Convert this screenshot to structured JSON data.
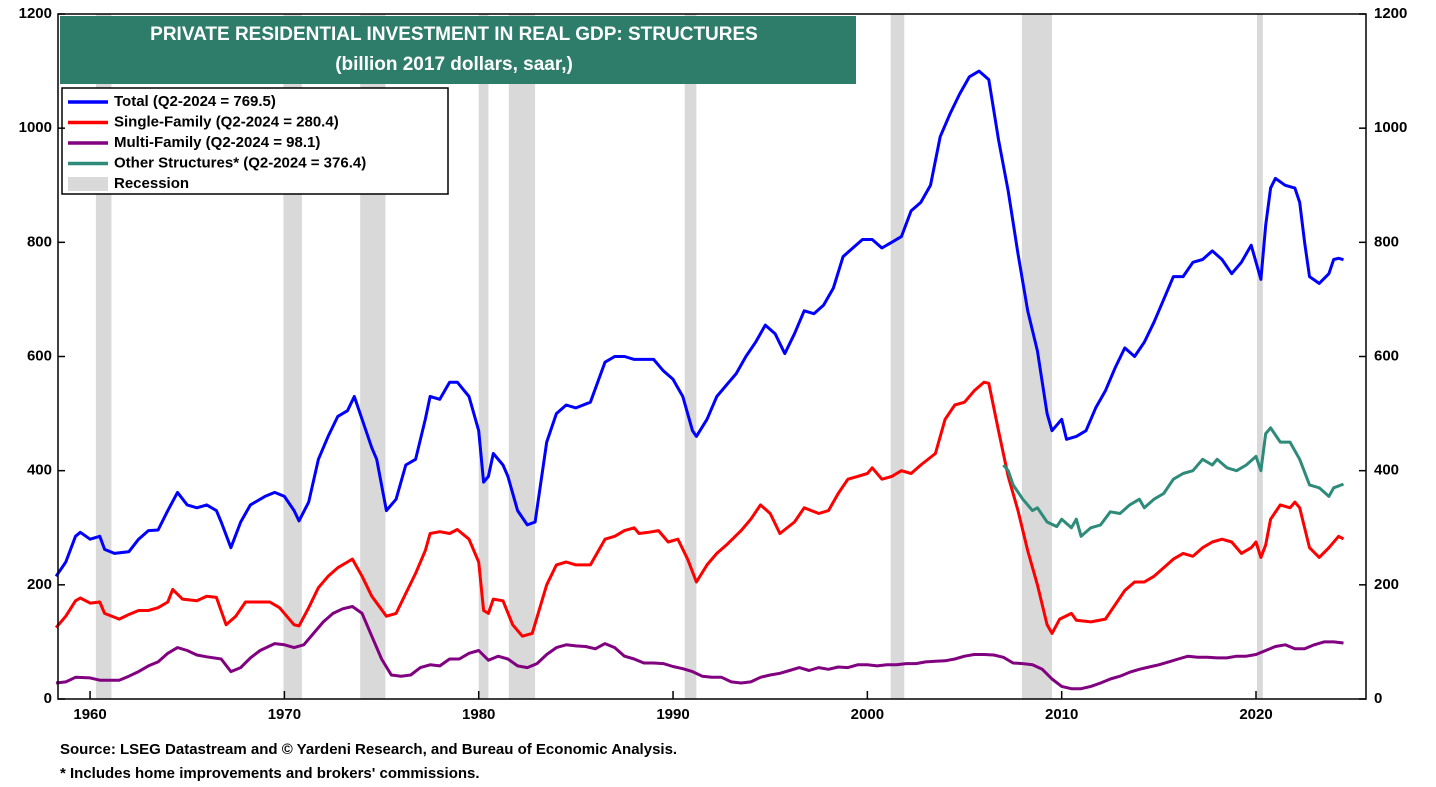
{
  "chart_data": {
    "type": "line",
    "title": "PRIVATE RESIDENTIAL INVESTMENT IN REAL GDP: STRUCTURES",
    "subtitle": "(billion 2017 dollars, saar,)",
    "source": "Source: LSEG Datastream and © Yardeni Research, and Bureau of Economic Analysis.",
    "note": "* Includes home improvements and brokers' commissions.",
    "xlim": [
      1958.35,
      2025.66
    ],
    "xticks": [
      1960,
      1970,
      1980,
      1990,
      2000,
      2010,
      2020
    ],
    "ylim": [
      0,
      1200
    ],
    "yticks": [
      0,
      200,
      400,
      600,
      800,
      1000,
      1200
    ],
    "y2lim": [
      0,
      1200
    ],
    "y2ticks": [
      0,
      200,
      400,
      600,
      800,
      1000,
      1200
    ],
    "legend": "top-left",
    "recession": {
      "name": "Recession",
      "color": "#d9d9d9",
      "periods": [
        [
          1960.3,
          1961.1
        ],
        [
          1969.95,
          1970.9
        ],
        [
          1973.9,
          1975.2
        ],
        [
          1980.0,
          1980.5
        ],
        [
          1981.55,
          1982.9
        ],
        [
          1990.6,
          1991.2
        ],
        [
          2001.2,
          2001.9
        ],
        [
          2007.95,
          2009.5
        ],
        [
          2020.05,
          2020.35
        ]
      ]
    },
    "series": [
      {
        "name": "Total (Q2-2024 = 769.5)",
        "color": "#0000ff",
        "x": [
          1958.25,
          1958.75,
          1959.25,
          1959.5,
          1960,
          1960.5,
          1960.75,
          1961.25,
          1962,
          1962.5,
          1963,
          1963.5,
          1964,
          1964.5,
          1965,
          1965.5,
          1966,
          1966.5,
          1966.75,
          1967.25,
          1967.75,
          1968.25,
          1969,
          1969.5,
          1970,
          1970.5,
          1970.75,
          1971.25,
          1971.75,
          1972.25,
          1972.75,
          1973.25,
          1973.6,
          1974,
          1974.5,
          1974.75,
          1975.25,
          1975.75,
          1976.25,
          1976.75,
          1977.25,
          1977.5,
          1978,
          1978.5,
          1978.9,
          1979.5,
          1980,
          1980.25,
          1980.5,
          1980.75,
          1981.25,
          1981.5,
          1982,
          1982.5,
          1982.9,
          1983.5,
          1984,
          1984.5,
          1985,
          1985.75,
          1986.5,
          1987,
          1987.5,
          1988,
          1988.5,
          1989,
          1989.5,
          1990,
          1990.5,
          1991,
          1991.2,
          1991.75,
          1992.25,
          1992.75,
          1993.25,
          1993.75,
          1994.25,
          1994.75,
          1995.25,
          1995.75,
          1996.25,
          1996.75,
          1997.25,
          1997.75,
          1998.25,
          1998.75,
          1999.25,
          1999.75,
          2000.25,
          2000.75,
          2001.25,
          2001.75,
          2002.25,
          2002.75,
          2003.25,
          2003.75,
          2004.25,
          2004.75,
          2005.25,
          2005.75,
          2006.25,
          2006.75,
          2007.25,
          2007.75,
          2008.25,
          2008.75,
          2009.25,
          2009.5,
          2010,
          2010.25,
          2010.75,
          2011.25,
          2011.75,
          2012.25,
          2012.75,
          2013.25,
          2013.75,
          2014.25,
          2014.75,
          2015.25,
          2015.75,
          2016.25,
          2016.75,
          2017.25,
          2017.75,
          2018.25,
          2018.75,
          2019.25,
          2019.75,
          2020.25,
          2020.5,
          2020.75,
          2021,
          2021.5,
          2022,
          2022.25,
          2022.5,
          2022.75,
          2023.25,
          2023.75,
          2024,
          2024.25,
          2024.5
        ],
        "values": [
          215,
          240,
          285,
          292,
          280,
          285,
          262,
          255,
          258,
          280,
          295,
          296,
          330,
          362,
          340,
          335,
          340,
          330,
          310,
          265,
          310,
          340,
          355,
          362,
          355,
          330,
          312,
          345,
          420,
          460,
          495,
          505,
          530,
          490,
          440,
          420,
          330,
          350,
          410,
          420,
          490,
          530,
          525,
          555,
          555,
          530,
          470,
          380,
          390,
          430,
          410,
          390,
          330,
          305,
          310,
          450,
          500,
          515,
          510,
          520,
          590,
          600,
          600,
          595,
          595,
          595,
          575,
          560,
          530,
          470,
          460,
          490,
          530,
          550,
          570,
          600,
          625,
          655,
          640,
          605,
          640,
          680,
          675,
          690,
          720,
          775,
          790,
          805,
          805,
          790,
          800,
          810,
          855,
          870,
          900,
          985,
          1025,
          1060,
          1090,
          1100,
          1085,
          980,
          890,
          780,
          680,
          610,
          500,
          470,
          490,
          455,
          460,
          470,
          510,
          540,
          580,
          615,
          600,
          625,
          660,
          700,
          740,
          740,
          765,
          770,
          785,
          770,
          745,
          765,
          795,
          735,
          830,
          895,
          912,
          900,
          895,
          870,
          800,
          740,
          728,
          745,
          770,
          772,
          769.5
        ]
      },
      {
        "name": "Single-Family (Q2-2024 = 280.4)",
        "color": "#ff0000",
        "x": [
          1958.25,
          1958.75,
          1959.25,
          1959.5,
          1960,
          1960.5,
          1960.75,
          1961.5,
          1962,
          1962.5,
          1963,
          1963.5,
          1964,
          1964.25,
          1964.75,
          1965.5,
          1966,
          1966.5,
          1967,
          1967.5,
          1968,
          1968.5,
          1969.25,
          1969.75,
          1970.5,
          1970.75,
          1971.25,
          1971.75,
          1972.25,
          1972.75,
          1973.25,
          1973.5,
          1974,
          1974.5,
          1975.25,
          1975.75,
          1976.25,
          1976.75,
          1977.25,
          1977.5,
          1978,
          1978.5,
          1978.9,
          1979.5,
          1980,
          1980.25,
          1980.5,
          1980.75,
          1981.25,
          1981.75,
          1982.25,
          1982.75,
          1983.5,
          1984,
          1984.5,
          1985,
          1985.75,
          1986.5,
          1987,
          1987.5,
          1988,
          1988.25,
          1988.75,
          1989.25,
          1989.75,
          1990.25,
          1990.75,
          1991.2,
          1991.75,
          1992.25,
          1992.75,
          1993.5,
          1994,
          1994.5,
          1995,
          1995.5,
          1996.25,
          1996.75,
          1997.5,
          1998,
          1998.5,
          1999,
          1999.5,
          2000,
          2000.25,
          2000.75,
          2001.25,
          2001.75,
          2002.25,
          2002.75,
          2003.5,
          2004,
          2004.5,
          2005,
          2005.5,
          2006,
          2006.25,
          2006.75,
          2007.25,
          2007.75,
          2008.25,
          2008.75,
          2009.25,
          2009.5,
          2009.9,
          2010.5,
          2010.75,
          2011.5,
          2012.25,
          2012.75,
          2013.25,
          2013.75,
          2014.25,
          2014.75,
          2015.25,
          2015.75,
          2016.25,
          2016.75,
          2017.25,
          2017.75,
          2018.25,
          2018.75,
          2019.25,
          2019.75,
          2020,
          2020.25,
          2020.5,
          2020.75,
          2021.25,
          2021.75,
          2022,
          2022.25,
          2022.5,
          2022.75,
          2023.25,
          2023.75,
          2024.25,
          2024.5
        ],
        "values": [
          125,
          145,
          172,
          177,
          168,
          170,
          150,
          140,
          148,
          155,
          155,
          160,
          170,
          192,
          175,
          172,
          180,
          178,
          130,
          145,
          170,
          170,
          170,
          160,
          130,
          128,
          160,
          195,
          215,
          230,
          240,
          245,
          215,
          180,
          145,
          150,
          185,
          220,
          260,
          290,
          293,
          290,
          297,
          280,
          240,
          155,
          150,
          175,
          172,
          130,
          110,
          115,
          200,
          235,
          240,
          235,
          235,
          280,
          285,
          295,
          300,
          290,
          292,
          295,
          275,
          280,
          245,
          205,
          235,
          255,
          270,
          295,
          315,
          340,
          325,
          290,
          310,
          335,
          325,
          330,
          360,
          385,
          390,
          395,
          405,
          385,
          390,
          400,
          395,
          410,
          430,
          490,
          515,
          520,
          540,
          555,
          553,
          470,
          390,
          330,
          260,
          200,
          130,
          115,
          140,
          150,
          138,
          135,
          140,
          165,
          190,
          205,
          205,
          215,
          230,
          245,
          255,
          250,
          265,
          275,
          280,
          275,
          255,
          265,
          275,
          248,
          270,
          315,
          340,
          335,
          345,
          335,
          300,
          265,
          248,
          265,
          285,
          280.4
        ]
      },
      {
        "name": "Multi-Family (Q2-2024 = 98.1)",
        "color": "#800080",
        "x": [
          1958.25,
          1958.75,
          1959.25,
          1960,
          1960.5,
          1961.5,
          1962,
          1962.5,
          1963,
          1963.5,
          1964,
          1964.5,
          1965,
          1965.5,
          1966,
          1966.75,
          1967.25,
          1967.75,
          1968.25,
          1968.75,
          1969.5,
          1970,
          1970.5,
          1971,
          1971.5,
          1972,
          1972.5,
          1973,
          1973.5,
          1974,
          1974.5,
          1975,
          1975.5,
          1976,
          1976.5,
          1977,
          1977.5,
          1978,
          1978.5,
          1979,
          1979.5,
          1980,
          1980.5,
          1981,
          1981.5,
          1982,
          1982.5,
          1983,
          1983.5,
          1984,
          1984.5,
          1985,
          1985.5,
          1986,
          1986.5,
          1987,
          1987.5,
          1988,
          1988.5,
          1989,
          1989.5,
          1990,
          1990.5,
          1991,
          1991.5,
          1992,
          1992.5,
          1993,
          1993.5,
          1994,
          1994.5,
          1995,
          1995.5,
          1996,
          1996.5,
          1997,
          1997.5,
          1998,
          1998.5,
          1999,
          1999.5,
          2000,
          2000.5,
          2001,
          2001.5,
          2002,
          2002.5,
          2003,
          2003.5,
          2004,
          2004.5,
          2005,
          2005.5,
          2006,
          2006.5,
          2007,
          2007.5,
          2008,
          2008.5,
          2009,
          2009.5,
          2010,
          2010.5,
          2011,
          2011.5,
          2012,
          2012.5,
          2013,
          2013.5,
          2014,
          2014.5,
          2015,
          2015.5,
          2016,
          2016.5,
          2017,
          2017.5,
          2018,
          2018.5,
          2019,
          2019.5,
          2020,
          2020.5,
          2021,
          2021.5,
          2022,
          2022.5,
          2023,
          2023.5,
          2024,
          2024.5
        ],
        "values": [
          28,
          30,
          38,
          37,
          33,
          33,
          40,
          48,
          58,
          65,
          80,
          90,
          85,
          77,
          74,
          70,
          48,
          55,
          72,
          85,
          97,
          95,
          90,
          95,
          115,
          135,
          150,
          158,
          162,
          150,
          110,
          70,
          42,
          40,
          42,
          55,
          60,
          58,
          70,
          70,
          80,
          85,
          68,
          75,
          70,
          58,
          55,
          62,
          78,
          90,
          95,
          93,
          92,
          88,
          97,
          90,
          75,
          70,
          63,
          63,
          62,
          57,
          53,
          48,
          40,
          38,
          38,
          30,
          28,
          30,
          38,
          42,
          45,
          50,
          55,
          50,
          55,
          52,
          56,
          55,
          60,
          60,
          58,
          60,
          60,
          62,
          62,
          65,
          66,
          67,
          70,
          75,
          78,
          78,
          77,
          73,
          63,
          62,
          60,
          52,
          35,
          22,
          18,
          18,
          22,
          28,
          35,
          40,
          47,
          52,
          56,
          60,
          65,
          70,
          75,
          73,
          73,
          72,
          72,
          75,
          75,
          78,
          85,
          92,
          95,
          88,
          88,
          95,
          100,
          100,
          98.1
        ]
      },
      {
        "name": "Other Structures* (Q2-2024 = 376.4)",
        "color": "#2e8b7a",
        "x": [
          2007,
          2007.25,
          2007.5,
          2008,
          2008.5,
          2008.75,
          2009.25,
          2009.75,
          2010,
          2010.5,
          2010.75,
          2011,
          2011.5,
          2012,
          2012.5,
          2013,
          2013.5,
          2014,
          2014.25,
          2014.75,
          2015.25,
          2015.75,
          2016.25,
          2016.75,
          2017.25,
          2017.75,
          2018,
          2018.5,
          2019,
          2019.5,
          2020,
          2020.25,
          2020.5,
          2020.75,
          2021.25,
          2021.75,
          2022.25,
          2022.75,
          2023.25,
          2023.75,
          2024,
          2024.5
        ],
        "values": [
          410,
          400,
          375,
          350,
          330,
          335,
          310,
          302,
          315,
          300,
          315,
          285,
          300,
          305,
          328,
          325,
          340,
          350,
          335,
          350,
          360,
          385,
          395,
          400,
          420,
          410,
          420,
          405,
          400,
          410,
          425,
          400,
          465,
          475,
          450,
          450,
          420,
          375,
          370,
          355,
          370,
          376.4
        ]
      }
    ]
  }
}
